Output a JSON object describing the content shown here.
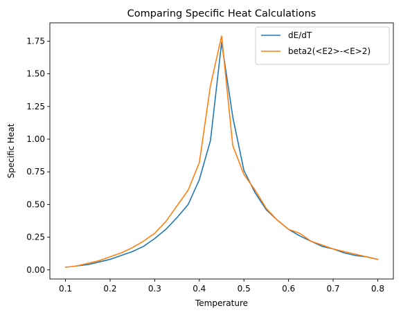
{
  "chart_data": {
    "type": "line",
    "title": "Comparing Specific Heat Calculations",
    "xlabel": "Temperature",
    "ylabel": "Specific Heat",
    "xlim": [
      0.065,
      0.835
    ],
    "ylim": [
      -0.07,
      1.89
    ],
    "xticks": [
      0.1,
      0.2,
      0.3,
      0.4,
      0.5,
      0.6,
      0.7,
      0.8
    ],
    "xtick_labels": [
      "0.1",
      "0.2",
      "0.3",
      "0.4",
      "0.5",
      "0.6",
      "0.7",
      "0.8"
    ],
    "yticks": [
      0.0,
      0.25,
      0.5,
      0.75,
      1.0,
      1.25,
      1.5,
      1.75
    ],
    "ytick_labels": [
      "0.00",
      "0.25",
      "0.50",
      "0.75",
      "1.00",
      "1.25",
      "1.50",
      "1.75"
    ],
    "grid": false,
    "legend_position": "top-right",
    "series": [
      {
        "name": "dE/dT",
        "color": "#1f77b4",
        "x": [
          0.125,
          0.15,
          0.175,
          0.2,
          0.225,
          0.25,
          0.275,
          0.3,
          0.325,
          0.35,
          0.375,
          0.4,
          0.425,
          0.45,
          0.475,
          0.5,
          0.525,
          0.55,
          0.575,
          0.6,
          0.625,
          0.65,
          0.675,
          0.7,
          0.725,
          0.75,
          0.775,
          0.8
        ],
        "y": [
          0.03,
          0.04,
          0.06,
          0.08,
          0.11,
          0.14,
          0.18,
          0.24,
          0.31,
          0.4,
          0.5,
          0.69,
          0.99,
          1.74,
          1.17,
          0.76,
          0.59,
          0.46,
          0.38,
          0.31,
          0.26,
          0.22,
          0.18,
          0.16,
          0.13,
          0.11,
          0.1,
          0.08
        ]
      },
      {
        "name": "beta2(<E2>-<E>2)",
        "color": "#ff7f0e",
        "x": [
          0.1,
          0.125,
          0.15,
          0.175,
          0.2,
          0.225,
          0.25,
          0.275,
          0.3,
          0.325,
          0.35,
          0.375,
          0.4,
          0.425,
          0.45,
          0.475,
          0.5,
          0.525,
          0.55,
          0.575,
          0.6,
          0.625,
          0.65,
          0.675,
          0.7,
          0.725,
          0.75,
          0.775,
          0.8
        ],
        "y": [
          0.02,
          0.03,
          0.05,
          0.07,
          0.1,
          0.13,
          0.17,
          0.22,
          0.28,
          0.37,
          0.49,
          0.61,
          0.82,
          1.41,
          1.79,
          0.95,
          0.73,
          0.61,
          0.47,
          0.38,
          0.31,
          0.28,
          0.22,
          0.19,
          0.16,
          0.14,
          0.12,
          0.1,
          0.08
        ]
      }
    ]
  }
}
